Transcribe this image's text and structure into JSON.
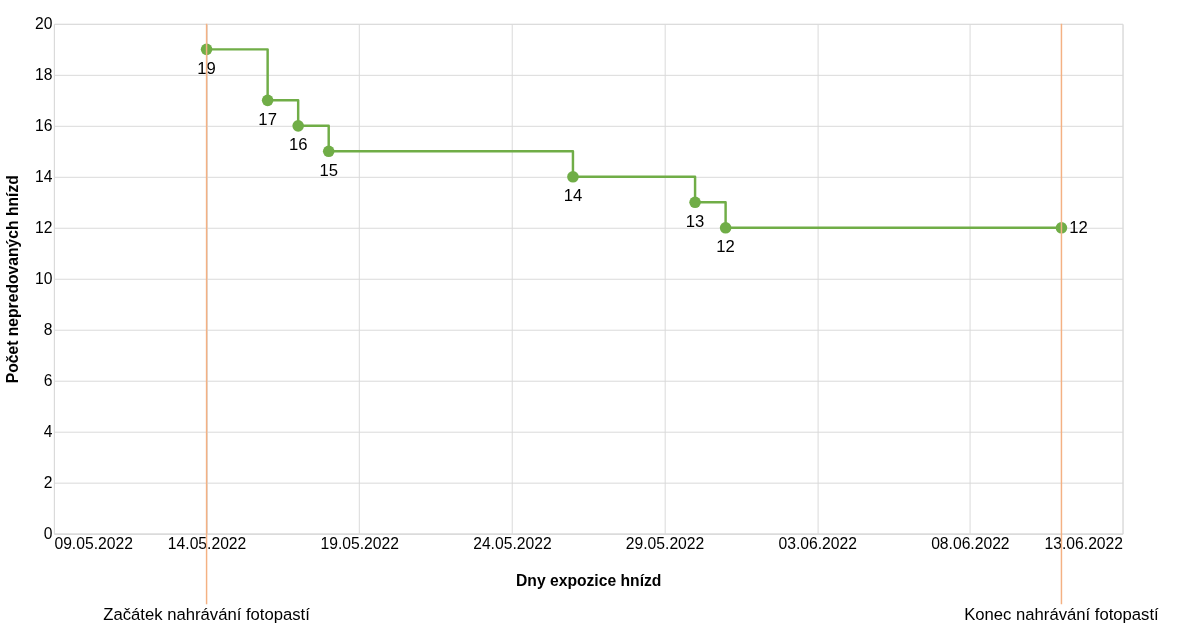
{
  "chart_data": {
    "type": "step",
    "xlabel": "Dny expozice hnízd",
    "ylabel": "Počet nepredovaných hnízd",
    "x": [
      "2022-05-14",
      "2022-05-16",
      "2022-05-17",
      "2022-05-18",
      "2022-05-26",
      "2022-05-30",
      "2022-05-31",
      "2022-06-11"
    ],
    "series": [
      {
        "color": "#70ad47",
        "values": [
          19,
          17,
          16,
          15,
          14,
          13,
          12,
          12
        ]
      }
    ],
    "data_labels": true,
    "marker": "circle",
    "xlim": [
      "2022-05-09",
      "2022-06-13"
    ],
    "xticks": [
      {
        "value": "2022-05-09",
        "label": "09.05.2022"
      },
      {
        "value": "2022-05-14",
        "label": "14.05.2022"
      },
      {
        "value": "2022-05-19",
        "label": "19.05.2022"
      },
      {
        "value": "2022-05-24",
        "label": "24.05.2022"
      },
      {
        "value": "2022-05-29",
        "label": "29.05.2022"
      },
      {
        "value": "2022-06-03",
        "label": "03.06.2022"
      },
      {
        "value": "2022-06-08",
        "label": "08.06.2022"
      },
      {
        "value": "2022-06-13",
        "label": "13.06.2022"
      }
    ],
    "ylim": [
      0,
      20
    ],
    "yticks": [
      0,
      2,
      4,
      6,
      8,
      10,
      12,
      14,
      16,
      18,
      20
    ],
    "grid": true,
    "ref_lines": [
      {
        "axis": "x",
        "value": "2022-05-14",
        "label": "Začátek nahrávání fotopastí",
        "color": "#f4b183"
      },
      {
        "axis": "x",
        "value": "2022-06-11",
        "label": "Konec nahrávání fotopastí",
        "color": "#f4b183"
      }
    ]
  }
}
